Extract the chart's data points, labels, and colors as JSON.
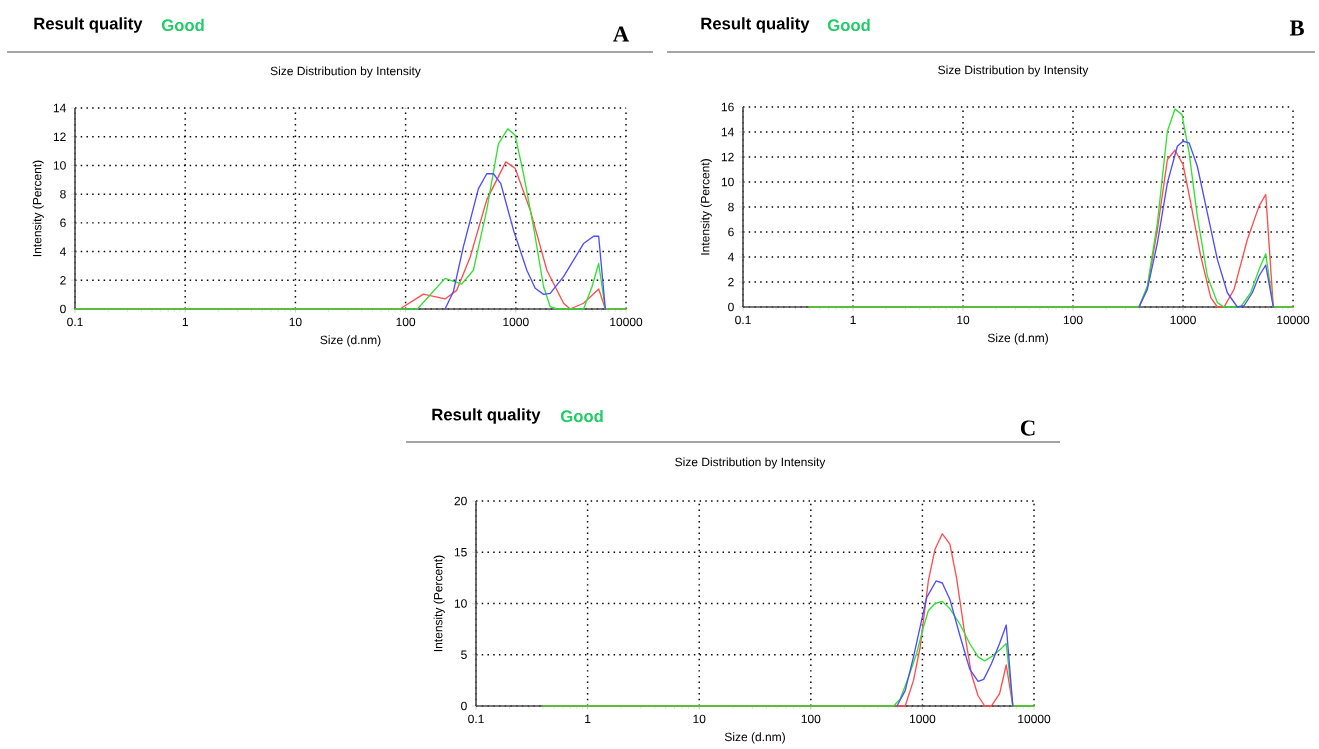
{
  "chart_data": [
    {
      "type": "line",
      "title": "Size Distribution by Intensity",
      "xlabel": "Size (d.nm)",
      "ylabel": "Intensity (Percent)",
      "annotations": [
        "Result quality",
        "Good",
        "A"
      ],
      "log": "x",
      "grid": true,
      "marker": "none",
      "line_style": "solid",
      "xlim": [
        0.1,
        10000
      ],
      "ylim": [
        0,
        14
      ],
      "xticks": [
        0.1,
        1,
        10,
        100,
        1000,
        10000
      ],
      "yticks": [
        0,
        2,
        4,
        6,
        8,
        10,
        12,
        14
      ],
      "series": [
        {
          "color": "#ff4d4d",
          "x": [
            0.1,
            88.7,
            145,
            228,
            291,
            385,
            545,
            811,
            986,
            1349,
            1914,
            2712,
            3116,
            4120,
            5650,
            6490,
            10000
          ],
          "values": [
            0,
            0,
            1.04,
            0.7,
            1.3,
            3.6,
            7.6,
            10.25,
            9.8,
            6.9,
            2.7,
            0.4,
            0,
            0.4,
            1.4,
            0,
            0
          ]
        },
        {
          "color": "#33e033",
          "x": [
            0.1,
            128,
            228,
            323,
            412,
            545,
            695,
            845,
            986,
            1175,
            1449,
            1787,
            2052,
            2359,
            4120,
            4909,
            5650,
            6490,
            10000
          ],
          "values": [
            0,
            0,
            2.13,
            1.74,
            2.7,
            6.9,
            11.5,
            12.55,
            12.1,
            9.4,
            5.7,
            1.55,
            0.16,
            0,
            0,
            1.55,
            3.17,
            0,
            0
          ]
        },
        {
          "color": "#4d4dff",
          "x": [
            228,
            271,
            334,
            458,
            545,
            627,
            731,
            953,
            1259,
            1499,
            1787,
            2052,
            2712,
            4120,
            5082,
            5650,
            6490
          ],
          "values": [
            0,
            1.2,
            4.33,
            8.38,
            9.42,
            9.42,
            8.73,
            5.49,
            2.7,
            1.44,
            1.02,
            1.09,
            2.25,
            4.56,
            5.07,
            5.07,
            0
          ]
        }
      ]
    },
    {
      "type": "line",
      "title": "Size Distribution by Intensity",
      "xlabel": "Size (d.nm)",
      "ylabel": "Intensity (Percent)",
      "annotations": [
        "Result quality",
        "Good",
        "B"
      ],
      "log": "x",
      "grid": true,
      "marker": "none",
      "line_style": "solid",
      "xlim": [
        0.1,
        10000
      ],
      "ylim": [
        0,
        16
      ],
      "xticks": [
        0.1,
        1,
        10,
        100,
        1000,
        10000
      ],
      "yticks": [
        0,
        2,
        4,
        6,
        8,
        10,
        12,
        14,
        16
      ],
      "series": [
        {
          "color": "#ff4d4d",
          "x": [
            0.4,
            398,
            474,
            585,
            721,
            846,
            1000,
            1175,
            1449,
            1787,
            2052,
            2359,
            2910,
            3846,
            4909,
            5650,
            6620,
            10000
          ],
          "values": [
            0,
            0,
            1.54,
            6.2,
            11.8,
            12.54,
            11.4,
            8.33,
            4.07,
            0.75,
            0,
            0,
            1.41,
            5.4,
            8.07,
            9.0,
            0,
            0
          ]
        },
        {
          "color": "#33e033",
          "x": [
            0.4,
            398,
            474,
            585,
            721,
            846,
            978,
            1136,
            1349,
            1664,
            2052,
            2359,
            3342,
            4120,
            4909,
            5650,
            6620,
            10000
          ],
          "values": [
            0,
            0,
            1.68,
            6.74,
            14.06,
            15.84,
            15.39,
            12.33,
            7.27,
            2.48,
            0.35,
            0,
            0,
            1.14,
            3.0,
            4.26,
            0,
            0
          ]
        },
        {
          "color": "#4d4dff",
          "x": [
            398,
            474,
            585,
            721,
            888,
            1000,
            1136,
            1349,
            1664,
            2052,
            2530,
            3116,
            3589,
            4266,
            4909,
            5650,
            6620
          ],
          "values": [
            0,
            1.41,
            5.14,
            9.93,
            12.86,
            13.26,
            13.13,
            11.26,
            7.53,
            3.81,
            1.14,
            0,
            0.1,
            1.14,
            2.48,
            3.35,
            0
          ]
        }
      ]
    },
    {
      "type": "line",
      "title": "Size Distribution by Intensity",
      "xlabel": "Size (d.nm)",
      "ylabel": "Intensity (Percent)",
      "annotations": [
        "Result quality",
        "Good",
        "C"
      ],
      "log": "x",
      "grid": true,
      "marker": "none",
      "line_style": "solid",
      "xlim": [
        0.1,
        10000
      ],
      "ylim": [
        0,
        20
      ],
      "xticks": [
        0.1,
        1,
        10,
        100,
        1000,
        10000
      ],
      "yticks": [
        0,
        5,
        10,
        15,
        20
      ],
      "series": [
        {
          "color": "#ff4d4d",
          "x": [
            0.4,
            701,
            832,
            953,
            1130,
            1297,
            1508,
            1763,
            2022,
            2399,
            2749,
            3153,
            3614,
            4143,
            4914,
            5636,
            6457,
            10000
          ],
          "values": [
            0,
            0,
            2.5,
            5.7,
            12.2,
            15.3,
            16.8,
            15.8,
            12.5,
            7,
            3.1,
            1,
            0,
            0,
            1.2,
            4,
            0,
            0
          ]
        },
        {
          "color": "#33e033",
          "x": [
            0.4,
            552,
            633,
            750,
            891,
            1021,
            1130,
            1297,
            1508,
            1763,
            2163,
            2655,
            3153,
            3614,
            4284,
            5082,
            5636,
            6457,
            10000
          ],
          "values": [
            0,
            0,
            0.7,
            2.8,
            5.2,
            7.7,
            9.3,
            10,
            10.2,
            9.5,
            8,
            6.1,
            4.8,
            4.4,
            4.9,
            5.6,
            6.1,
            0,
            0
          ]
        },
        {
          "color": "#4d4dff",
          "x": [
            591,
            701,
            832,
            953,
            1093,
            1325,
            1508,
            1763,
            2163,
            2655,
            3153,
            3539,
            4143,
            4914,
            5636,
            6457
          ],
          "values": [
            0,
            1.5,
            4.8,
            7.7,
            10.6,
            12.2,
            12,
            10.4,
            6.9,
            3.6,
            2.4,
            2.6,
            4.1,
            6.1,
            7.9,
            0
          ]
        }
      ]
    }
  ]
}
